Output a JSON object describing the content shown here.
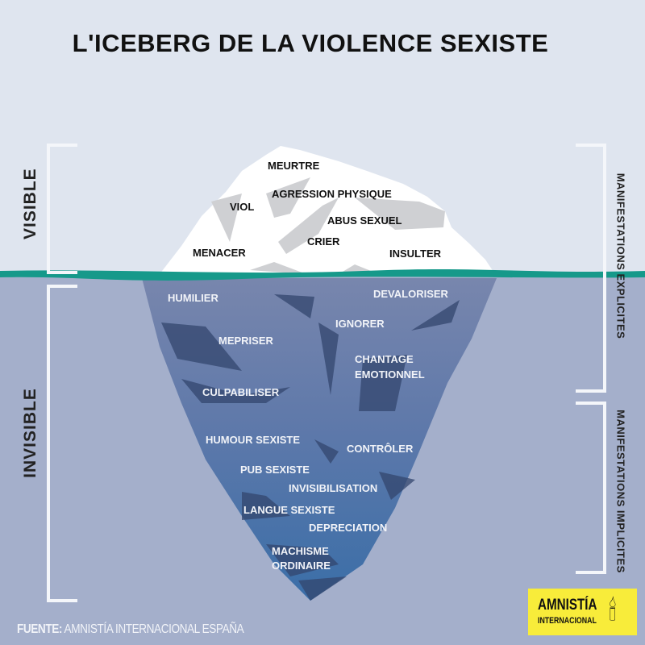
{
  "title": "L'ICEBERG DE LA VIOLENCE SEXISTE",
  "side_labels": {
    "visible": "VISIBLE",
    "invisible": "INVISIBLE",
    "explicit": "MANIFESTATIONS EXPLICITES",
    "implicit": "MANIFESTATIONS IMPLICITES"
  },
  "above_water": [
    "MEURTRE",
    "AGRESSION PHYSIQUE",
    "VIOL",
    "ABUS SEXUEL",
    "CRIER",
    "MENACER",
    "INSULTER"
  ],
  "below_water": [
    "HUMILIER",
    "DEVALORISER",
    "IGNORER",
    "MEPRISER",
    "CHANTAGE",
    "EMOTIONNEL",
    "CULPABILISER",
    "HUMOUR SEXISTE",
    "CONTRÔLER",
    "PUB SEXISTE",
    "INVISIBILISATION",
    "LANGUE SEXISTE",
    "DEPRECIATION",
    "MACHISME",
    "ORDINAIRE"
  ],
  "source": {
    "label": "FUENTE:",
    "text": " AMNISTÍA INTERNACIONAL ESPAÑA"
  },
  "logo": {
    "line1": "AMNISTÍA",
    "line2": "INTERNACIONAL"
  },
  "colors": {
    "sky": "#dfe5ef",
    "water": "#a4afcb",
    "waterline": "#16998a",
    "logo_bg": "#f8ec3a"
  }
}
